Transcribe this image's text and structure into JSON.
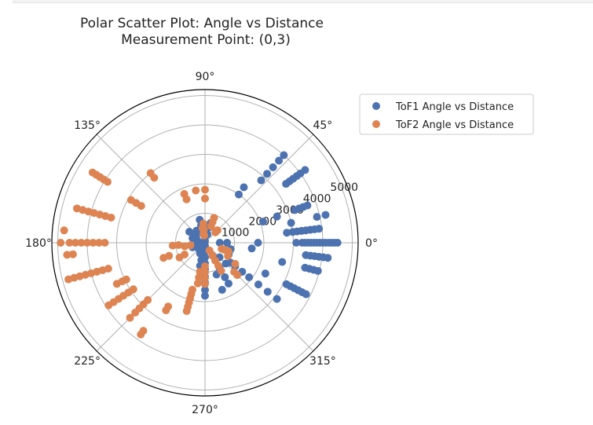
{
  "chart_data": {
    "type": "scatter",
    "projection": "polar",
    "title": "Polar Scatter Plot: Angle vs Distance",
    "subtitle": "Measurement Point: (0,3)",
    "theta_ticks": [
      "0°",
      "45°",
      "90°",
      "135°",
      "180°",
      "225°",
      "270°",
      "315°"
    ],
    "theta_tick_values": [
      0,
      45,
      90,
      135,
      180,
      225,
      270,
      315
    ],
    "r_ticks": [
      "1000",
      "2000",
      "3000",
      "4000",
      "5000"
    ],
    "r_tick_values": [
      1000,
      2000,
      3000,
      4000,
      5000
    ],
    "rlim": [
      0,
      5200
    ],
    "grid": true,
    "legend_position": "upper right, outside plot",
    "series": [
      {
        "name": "ToF1 Angle vs Distance",
        "color": "#4c72b0",
        "points": [
          [
            0,
            4500
          ],
          [
            0,
            4400
          ],
          [
            0,
            4300
          ],
          [
            0,
            4200
          ],
          [
            0,
            4100
          ],
          [
            0,
            4000
          ],
          [
            0,
            3900
          ],
          [
            0,
            3800
          ],
          [
            0,
            3700
          ],
          [
            0,
            3600
          ],
          [
            0,
            3500
          ],
          [
            0,
            3400
          ],
          [
            0,
            3300
          ],
          [
            0,
            3100
          ],
          [
            0,
            1800
          ],
          [
            0,
            750
          ],
          [
            0,
            500
          ],
          [
            -7,
            4200
          ],
          [
            -7,
            4050
          ],
          [
            -7,
            3900
          ],
          [
            -7,
            3750
          ],
          [
            -7,
            3600
          ],
          [
            -7,
            3450
          ],
          [
            -7,
            1600
          ],
          [
            -14,
            3950
          ],
          [
            -14,
            3800
          ],
          [
            -14,
            3650
          ],
          [
            -14,
            3500
          ],
          [
            -14,
            2700
          ],
          [
            -14,
            900
          ],
          [
            -27,
            3850
          ],
          [
            -27,
            3700
          ],
          [
            -27,
            3550
          ],
          [
            -27,
            3400
          ],
          [
            -27,
            3250
          ],
          [
            -27,
            3100
          ],
          [
            -27,
            2300
          ],
          [
            -27,
            900
          ],
          [
            -38,
            1100
          ],
          [
            -38,
            1300
          ],
          [
            -38,
            1600
          ],
          [
            -38,
            1900
          ],
          [
            -38,
            2300
          ],
          [
            -38,
            2700
          ],
          [
            -38,
            3100
          ],
          [
            -45,
            700
          ],
          [
            -45,
            1000
          ],
          [
            -60,
            500
          ],
          [
            -60,
            700
          ],
          [
            -60,
            1000
          ],
          [
            -60,
            1350
          ],
          [
            -60,
            1600
          ],
          [
            -70,
            1150
          ],
          [
            -70,
            1700
          ],
          [
            -90,
            100
          ],
          [
            -90,
            300
          ],
          [
            -90,
            500
          ],
          [
            -90,
            700
          ],
          [
            -90,
            900
          ],
          [
            -90,
            1150
          ],
          [
            -90,
            1350
          ],
          [
            -90,
            1600
          ],
          [
            -90,
            1800
          ],
          [
            -102,
            100
          ],
          [
            -102,
            350
          ],
          [
            -102,
            600
          ],
          [
            -102,
            800
          ],
          [
            -115,
            300
          ],
          [
            -115,
            400
          ],
          [
            7,
            3900
          ],
          [
            7,
            3750
          ],
          [
            7,
            3600
          ],
          [
            7,
            3450
          ],
          [
            7,
            3300
          ],
          [
            7,
            3150
          ],
          [
            7,
            3000
          ],
          [
            7,
            2800
          ],
          [
            13,
            4200
          ],
          [
            13,
            3900
          ],
          [
            13,
            3000
          ],
          [
            20,
            3700
          ],
          [
            20,
            3550
          ],
          [
            20,
            3400
          ],
          [
            20,
            3250
          ],
          [
            20,
            2600
          ],
          [
            20,
            2100
          ],
          [
            36,
            4200
          ],
          [
            36,
            4000
          ],
          [
            36,
            3850
          ],
          [
            36,
            3700
          ],
          [
            36,
            3550
          ],
          [
            36,
            3400
          ],
          [
            48,
            4000
          ],
          [
            48,
            3750
          ],
          [
            48,
            3450
          ],
          [
            48,
            3150
          ],
          [
            48,
            2850
          ],
          [
            55,
            2300
          ],
          [
            55,
            2000
          ],
          [
            74,
            300
          ],
          [
            74,
            550
          ],
          [
            74,
            700
          ],
          [
            90,
            50
          ],
          [
            90,
            200
          ],
          [
            90,
            400
          ],
          [
            103,
            600
          ],
          [
            103,
            800
          ],
          [
            125,
            400
          ],
          [
            125,
            500
          ],
          [
            145,
            500
          ],
          [
            145,
            650
          ],
          [
            160,
            300
          ],
          [
            160,
            450
          ],
          [
            178,
            200
          ],
          [
            200,
            250
          ],
          [
            200,
            350
          ],
          [
            200,
            450
          ],
          [
            215,
            200
          ],
          [
            215,
            300
          ]
        ]
      },
      {
        "name": "ToF2 Angle vs Distance",
        "color": "#dd8452",
        "points": [
          [
            180,
            4900
          ],
          [
            180,
            4600
          ],
          [
            180,
            4400
          ],
          [
            180,
            4200
          ],
          [
            180,
            4000
          ],
          [
            180,
            3800
          ],
          [
            180,
            3600
          ],
          [
            180,
            3400
          ],
          [
            175,
            4800
          ],
          [
            165,
            4500
          ],
          [
            165,
            4300
          ],
          [
            165,
            4100
          ],
          [
            165,
            3900
          ],
          [
            165,
            3700
          ],
          [
            165,
            3500
          ],
          [
            165,
            3300
          ],
          [
            148,
            4500
          ],
          [
            148,
            4350
          ],
          [
            148,
            4200
          ],
          [
            148,
            4050
          ],
          [
            148,
            3900
          ],
          [
            128,
            3000
          ],
          [
            128,
            2800
          ],
          [
            150,
            2900
          ],
          [
            150,
            2700
          ],
          [
            150,
            2500
          ],
          [
            113,
            1800
          ],
          [
            113,
            1600
          ],
          [
            100,
            1800
          ],
          [
            90,
            1800
          ],
          [
            90,
            1500
          ],
          [
            70,
            900
          ],
          [
            70,
            750
          ],
          [
            70,
            600
          ],
          [
            185,
            4700
          ],
          [
            185,
            4500
          ],
          [
            195,
            4800
          ],
          [
            195,
            4600
          ],
          [
            195,
            4400
          ],
          [
            195,
            4200
          ],
          [
            195,
            4000
          ],
          [
            195,
            3800
          ],
          [
            195,
            3600
          ],
          [
            195,
            3400
          ],
          [
            205,
            3300
          ],
          [
            205,
            3100
          ],
          [
            205,
            2950
          ],
          [
            213,
            3900
          ],
          [
            213,
            3700
          ],
          [
            213,
            3500
          ],
          [
            213,
            3300
          ],
          [
            213,
            3100
          ],
          [
            213,
            2900
          ],
          [
            225,
            3600
          ],
          [
            225,
            3350
          ],
          [
            225,
            3150
          ],
          [
            225,
            2950
          ],
          [
            225,
            2750
          ],
          [
            235,
            3800
          ],
          [
            235,
            3650
          ],
          [
            240,
            2650
          ],
          [
            240,
            2500
          ],
          [
            255,
            2400
          ],
          [
            255,
            2250
          ],
          [
            255,
            2100
          ],
          [
            255,
            1950
          ],
          [
            255,
            1800
          ],
          [
            255,
            1650
          ],
          [
            260,
            1400
          ],
          [
            260,
            1200
          ],
          [
            260,
            1000
          ],
          [
            270,
            1400
          ],
          [
            270,
            1200
          ],
          [
            270,
            1000
          ],
          [
            270,
            800
          ],
          [
            200,
            1500
          ],
          [
            200,
            1300
          ],
          [
            185,
            1100
          ],
          [
            185,
            900
          ],
          [
            190,
            700
          ],
          [
            190,
            500
          ],
          [
            95,
            650
          ],
          [
            95,
            450
          ],
          [
            95,
            250
          ],
          [
            100,
            500
          ],
          [
            100,
            300
          ],
          [
            45,
            500
          ],
          [
            45,
            600
          ],
          [
            300,
            300
          ],
          [
            300,
            500
          ],
          [
            300,
            700
          ],
          [
            300,
            900
          ],
          [
            300,
            1100
          ],
          [
            315,
            1400
          ],
          [
            315,
            1550
          ],
          [
            325,
            1250
          ],
          [
            330,
            900
          ],
          [
            340,
            600
          ],
          [
            340,
            700
          ],
          [
            340,
            800
          ],
          [
            340,
            850
          ],
          [
            210,
            1000
          ],
          [
            210,
            800
          ]
        ]
      }
    ]
  }
}
